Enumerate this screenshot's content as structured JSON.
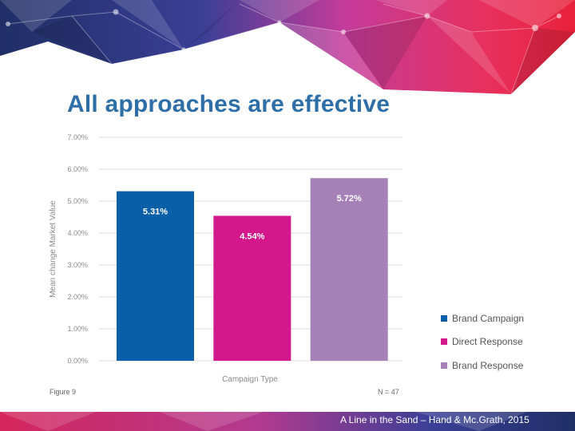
{
  "slide": {
    "title": "All approaches are effective",
    "citation": "A Line in the Sand – Hand & Mc.Grath, 2015",
    "figure_label": "Figure 9",
    "n_label": "N = 47"
  },
  "colors": {
    "title": "#2f6fa8",
    "brand_campaign": "#0b5ea8",
    "direct_response": "#d4188c",
    "brand_response": "#a581b8",
    "gridline": "#dcdcdc"
  },
  "chart_data": {
    "type": "bar",
    "title": "",
    "xlabel": "Campaign Type",
    "ylabel": "Mean change Market Value",
    "categories": [
      "Brand Campaign",
      "Direct Response",
      "Brand Response"
    ],
    "values": [
      5.31,
      4.54,
      5.72
    ],
    "value_labels": [
      "5.31%",
      "4.54%",
      "5.72%"
    ],
    "ylim": [
      0,
      7
    ],
    "yticks": [
      0,
      1,
      2,
      3,
      4,
      5,
      6,
      7
    ],
    "ytick_labels": [
      "0.00%",
      "1.00%",
      "2.00%",
      "3.00%",
      "4.00%",
      "5.00%",
      "6.00%",
      "7.00%"
    ],
    "grid": true,
    "legend": {
      "placement": "right",
      "entries": [
        "Brand Campaign",
        "Direct Response",
        "Brand Response"
      ]
    }
  }
}
